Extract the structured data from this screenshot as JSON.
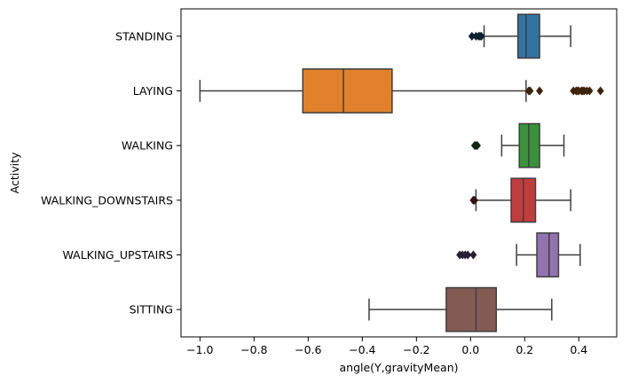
{
  "chart_data": {
    "type": "box",
    "orientation": "horizontal",
    "xlabel": "angle(Y,gravityMean)",
    "ylabel": "Activity",
    "xlim": [
      -1.07,
      0.54
    ],
    "x_ticks": [
      -1.0,
      -0.8,
      -0.6,
      -0.4,
      -0.2,
      0.0,
      0.2,
      0.4
    ],
    "x_tick_labels": [
      "−1.0",
      "−0.8",
      "−0.6",
      "−0.4",
      "−0.2",
      "0.0",
      "0.2",
      "0.4"
    ],
    "grid": false,
    "categories": [
      "STANDING",
      "LAYING",
      "WALKING",
      "WALKING_DOWNSTAIRS",
      "WALKING_UPSTAIRS",
      "SITTING"
    ],
    "series": [
      {
        "category": "STANDING",
        "color": "#3274a1",
        "whisker_low": 0.05,
        "q1": 0.175,
        "median": 0.205,
        "q3": 0.255,
        "whisker_high": 0.37,
        "outliers": [
          0.005,
          0.02,
          0.03,
          0.035,
          0.04
        ]
      },
      {
        "category": "LAYING",
        "color": "#e1812c",
        "whisker_low": -1.0,
        "q1": -0.62,
        "median": -0.47,
        "q3": -0.29,
        "whisker_high": 0.205,
        "outliers": [
          0.215,
          0.22,
          0.255,
          0.38,
          0.39,
          0.395,
          0.4,
          0.41,
          0.415,
          0.42,
          0.43,
          0.44,
          0.48
        ]
      },
      {
        "category": "WALKING",
        "color": "#3a923a",
        "whisker_low": 0.115,
        "q1": 0.18,
        "median": 0.215,
        "q3": 0.255,
        "whisker_high": 0.345,
        "outliers": [
          0.015,
          0.02,
          0.025
        ]
      },
      {
        "category": "WALKING_DOWNSTAIRS",
        "color": "#c03d3e",
        "whisker_low": 0.02,
        "q1": 0.15,
        "median": 0.195,
        "q3": 0.24,
        "whisker_high": 0.37,
        "outliers": [
          0.01,
          0.015
        ]
      },
      {
        "category": "WALKING_UPSTAIRS",
        "color": "#9372b2",
        "whisker_low": 0.17,
        "q1": 0.245,
        "median": 0.29,
        "q3": 0.325,
        "whisker_high": 0.405,
        "outliers": [
          -0.04,
          -0.03,
          -0.02,
          -0.01,
          0.01
        ]
      },
      {
        "category": "SITTING",
        "color": "#845b53",
        "whisker_low": -0.375,
        "q1": -0.09,
        "median": 0.02,
        "q3": 0.095,
        "whisker_high": 0.3,
        "outliers": []
      }
    ]
  }
}
